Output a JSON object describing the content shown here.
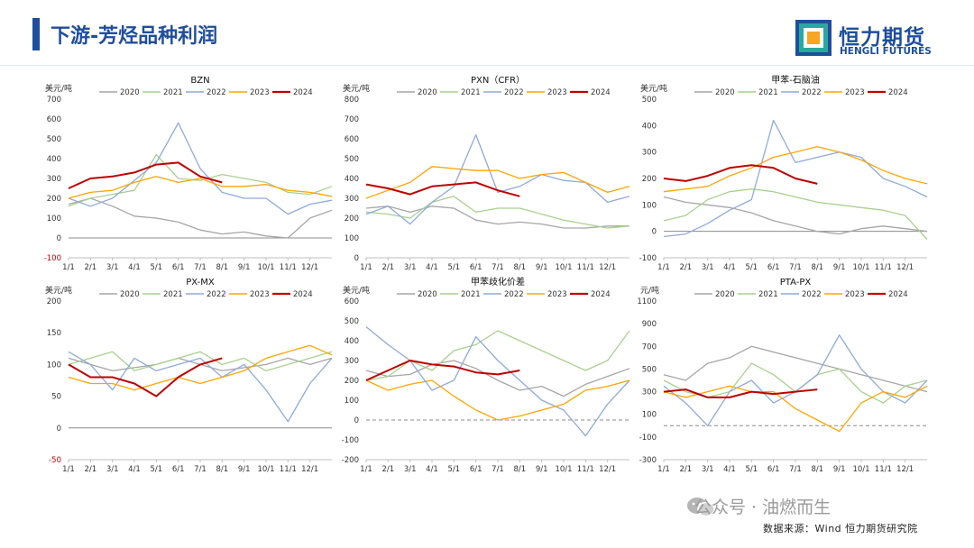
{
  "header": {
    "title": "下游-芳烃品种利润"
  },
  "logo": {
    "cn": "恒力期货",
    "en": "HENGLI FUTURES"
  },
  "footer": {
    "watermark": "公众号 · 油燃而生",
    "source": "数据来源：Wind 恒力期货研究院"
  },
  "colors": {
    "2020": "#a6a6a6",
    "2021": "#a9d18e",
    "2022": "#8faadc",
    "2023": "#ffa500",
    "2024": "#c00000",
    "brand": "#1f4e9c"
  },
  "chart_data": [
    {
      "type": "line",
      "title": "BZN",
      "unit": "美元/吨",
      "ylim": [
        -100,
        700
      ],
      "yticks": [
        "-100",
        "0",
        "100",
        "200",
        "300",
        "400",
        "500",
        "600",
        "700"
      ],
      "xticks": [
        "1/1",
        "2/1",
        "3/1",
        "4/1",
        "5/1",
        "6/1",
        "7/1",
        "8/1",
        "9/1",
        "10/1",
        "11/1",
        "12/1"
      ],
      "series": [
        {
          "name": "2020",
          "x": [
            0,
            1,
            2,
            3,
            4,
            5,
            6,
            7,
            8,
            9,
            10,
            11,
            12
          ],
          "values": [
            170,
            200,
            160,
            110,
            100,
            80,
            40,
            20,
            30,
            10,
            0,
            100,
            140
          ]
        },
        {
          "name": "2021",
          "x": [
            0,
            1,
            2,
            3,
            4,
            5,
            6,
            7,
            8,
            9,
            10,
            11,
            12
          ],
          "values": [
            160,
            200,
            220,
            240,
            420,
            300,
            290,
            320,
            300,
            280,
            230,
            220,
            260
          ]
        },
        {
          "name": "2022",
          "x": [
            0,
            1,
            2,
            3,
            4,
            5,
            6,
            7,
            8,
            9,
            10,
            11,
            12
          ],
          "values": [
            200,
            160,
            200,
            290,
            380,
            580,
            350,
            230,
            200,
            200,
            120,
            170,
            190
          ]
        },
        {
          "name": "2023",
          "x": [
            0,
            1,
            2,
            3,
            4,
            5,
            6,
            7,
            8,
            9,
            10,
            11,
            12
          ],
          "values": [
            200,
            230,
            240,
            280,
            310,
            280,
            300,
            260,
            260,
            270,
            240,
            230,
            210
          ]
        },
        {
          "name": "2024",
          "x": [
            0,
            1,
            2,
            3,
            4,
            5,
            6,
            7
          ],
          "values": [
            250,
            300,
            310,
            330,
            370,
            380,
            310,
            280
          ]
        }
      ]
    },
    {
      "type": "line",
      "title": "PXN（CFR）",
      "unit": "美元/吨",
      "ylim": [
        0,
        800
      ],
      "yticks": [
        "0",
        "100",
        "200",
        "300",
        "400",
        "500",
        "600",
        "700",
        "800"
      ],
      "xticks": [
        "1/1",
        "2/1",
        "3/1",
        "4/1",
        "5/1",
        "6/1",
        "7/1",
        "8/1",
        "9/1",
        "10/1",
        "11/1",
        "12/1"
      ],
      "series": [
        {
          "name": "2020",
          "x": [
            0,
            1,
            2,
            3,
            4,
            5,
            6,
            7,
            8,
            9,
            10,
            11,
            12
          ],
          "values": [
            250,
            260,
            230,
            260,
            250,
            190,
            170,
            180,
            170,
            150,
            150,
            160,
            160
          ]
        },
        {
          "name": "2021",
          "x": [
            0,
            1,
            2,
            3,
            4,
            5,
            6,
            7,
            8,
            9,
            10,
            11,
            12
          ],
          "values": [
            230,
            220,
            200,
            280,
            310,
            230,
            250,
            250,
            220,
            190,
            170,
            150,
            160
          ]
        },
        {
          "name": "2022",
          "x": [
            0,
            1,
            2,
            3,
            4,
            5,
            6,
            7,
            8,
            9,
            10,
            11,
            12
          ],
          "values": [
            220,
            260,
            170,
            280,
            360,
            620,
            330,
            360,
            420,
            390,
            380,
            280,
            310
          ]
        },
        {
          "name": "2023",
          "x": [
            0,
            1,
            2,
            3,
            4,
            5,
            6,
            7,
            8,
            9,
            10,
            11,
            12
          ],
          "values": [
            300,
            340,
            380,
            460,
            450,
            440,
            440,
            400,
            420,
            430,
            380,
            330,
            360
          ]
        },
        {
          "name": "2024",
          "x": [
            0,
            1,
            2,
            3,
            4,
            5,
            6,
            7
          ],
          "values": [
            370,
            350,
            320,
            360,
            370,
            380,
            340,
            310
          ]
        }
      ]
    },
    {
      "type": "line",
      "title": "甲苯-石脑油",
      "unit": "美元/吨",
      "ylim": [
        -100,
        500
      ],
      "yticks": [
        "-100",
        "0",
        "100",
        "200",
        "300",
        "400",
        "500"
      ],
      "xticks": [
        "1/1",
        "2/1",
        "3/1",
        "4/1",
        "5/1",
        "6/1",
        "7/1",
        "8/1",
        "9/1",
        "10/1",
        "11/1",
        "12/1"
      ],
      "series": [
        {
          "name": "2020",
          "x": [
            0,
            1,
            2,
            3,
            4,
            5,
            6,
            7,
            8,
            9,
            10,
            11,
            12
          ],
          "values": [
            130,
            110,
            100,
            90,
            70,
            40,
            20,
            0,
            -10,
            10,
            20,
            10,
            0
          ]
        },
        {
          "name": "2021",
          "x": [
            0,
            1,
            2,
            3,
            4,
            5,
            6,
            7,
            8,
            9,
            10,
            11,
            12
          ],
          "values": [
            40,
            60,
            120,
            150,
            160,
            150,
            130,
            110,
            100,
            90,
            80,
            60,
            -30
          ]
        },
        {
          "name": "2022",
          "x": [
            0,
            1,
            2,
            3,
            4,
            5,
            6,
            7,
            8,
            9,
            10,
            11,
            12
          ],
          "values": [
            -20,
            -10,
            30,
            80,
            120,
            420,
            260,
            280,
            300,
            280,
            200,
            170,
            130
          ]
        },
        {
          "name": "2023",
          "x": [
            0,
            1,
            2,
            3,
            4,
            5,
            6,
            7,
            8,
            9,
            10,
            11,
            12
          ],
          "values": [
            150,
            160,
            170,
            210,
            240,
            280,
            300,
            320,
            300,
            270,
            230,
            200,
            180
          ]
        },
        {
          "name": "2024",
          "x": [
            0,
            1,
            2,
            3,
            4,
            5,
            6,
            7
          ],
          "values": [
            200,
            190,
            210,
            240,
            250,
            240,
            200,
            180
          ]
        }
      ]
    },
    {
      "type": "line",
      "title": "PX-MX",
      "unit": "美元/吨",
      "ylim": [
        -50,
        200
      ],
      "yticks": [
        "-50",
        "0",
        "50",
        "100",
        "150",
        "200"
      ],
      "xticks": [
        "1/1",
        "2/1",
        "3/1",
        "4/1",
        "5/1",
        "6/1",
        "7/1",
        "8/1",
        "9/1",
        "10/1",
        "11/1",
        "12/1"
      ],
      "series": [
        {
          "name": "2020",
          "x": [
            0,
            1,
            2,
            3,
            4,
            5,
            6,
            7,
            8,
            9,
            10,
            11,
            12
          ],
          "values": [
            110,
            100,
            90,
            95,
            100,
            110,
            100,
            90,
            95,
            100,
            110,
            100,
            110
          ]
        },
        {
          "name": "2021",
          "x": [
            0,
            1,
            2,
            3,
            4,
            5,
            6,
            7,
            8,
            9,
            10,
            11,
            12
          ],
          "values": [
            100,
            110,
            120,
            90,
            100,
            110,
            120,
            100,
            110,
            90,
            100,
            110,
            120
          ]
        },
        {
          "name": "2022",
          "x": [
            0,
            1,
            2,
            3,
            4,
            5,
            6,
            7,
            8,
            9,
            10,
            11,
            12
          ],
          "values": [
            120,
            100,
            60,
            110,
            90,
            100,
            110,
            80,
            100,
            60,
            10,
            70,
            110
          ]
        },
        {
          "name": "2023",
          "x": [
            0,
            1,
            2,
            3,
            4,
            5,
            6,
            7,
            8,
            9,
            10,
            11,
            12
          ],
          "values": [
            80,
            70,
            70,
            60,
            70,
            80,
            70,
            80,
            90,
            110,
            120,
            130,
            115
          ]
        },
        {
          "name": "2024",
          "x": [
            0,
            1,
            2,
            3,
            4,
            5,
            6,
            7
          ],
          "values": [
            100,
            80,
            80,
            70,
            50,
            80,
            100,
            110
          ]
        }
      ]
    },
    {
      "type": "line",
      "title": "甲苯歧化价差",
      "unit": "美元/吨",
      "ylim": [
        -200,
        600
      ],
      "yticks": [
        "-200",
        "-100",
        "0",
        "100",
        "200",
        "300",
        "400",
        "500",
        "600"
      ],
      "xticks": [
        "1/1",
        "2/1",
        "3/1",
        "4/1",
        "5/1",
        "6/1",
        "7/1",
        "8/1",
        "9/1",
        "10/1",
        "11/1",
        "12/1"
      ],
      "series": [
        {
          "name": "2020",
          "x": [
            0,
            1,
            2,
            3,
            4,
            5,
            6,
            7,
            8,
            9,
            10,
            11,
            12
          ],
          "values": [
            250,
            220,
            230,
            280,
            300,
            260,
            200,
            150,
            170,
            120,
            180,
            220,
            260
          ]
        },
        {
          "name": "2021",
          "x": [
            0,
            1,
            2,
            3,
            4,
            5,
            6,
            7,
            8,
            9,
            10,
            11,
            12
          ],
          "values": [
            200,
            220,
            300,
            250,
            350,
            380,
            450,
            400,
            350,
            300,
            250,
            300,
            450
          ]
        },
        {
          "name": "2022",
          "x": [
            0,
            1,
            2,
            3,
            4,
            5,
            6,
            7,
            8,
            9,
            10,
            11,
            12
          ],
          "values": [
            470,
            380,
            300,
            150,
            200,
            420,
            300,
            200,
            100,
            50,
            -80,
            80,
            200
          ]
        },
        {
          "name": "2023",
          "x": [
            0,
            1,
            2,
            3,
            4,
            5,
            6,
            7,
            8,
            9,
            10,
            11,
            12
          ],
          "values": [
            200,
            150,
            180,
            200,
            120,
            50,
            0,
            20,
            50,
            80,
            150,
            170,
            200
          ]
        },
        {
          "name": "2024",
          "x": [
            0,
            1,
            2,
            3,
            4,
            5,
            6,
            7
          ],
          "values": [
            200,
            250,
            300,
            280,
            270,
            240,
            230,
            250
          ]
        }
      ]
    },
    {
      "type": "line",
      "title": "PTA-PX",
      "unit": "元/吨",
      "ylim": [
        -300,
        1100
      ],
      "yticks": [
        "-300",
        "-100",
        "100",
        "300",
        "500",
        "700",
        "900",
        "1100"
      ],
      "xticks": [
        "1/1",
        "2/1",
        "3/1",
        "4/1",
        "5/1",
        "6/1",
        "7/1",
        "8/1",
        "9/1",
        "10/1",
        "11/1",
        "12/1"
      ],
      "series": [
        {
          "name": "2020",
          "x": [
            0,
            1,
            2,
            3,
            4,
            5,
            6,
            7,
            8,
            9,
            10,
            11,
            12
          ],
          "values": [
            450,
            400,
            550,
            600,
            700,
            650,
            600,
            550,
            500,
            450,
            400,
            350,
            300
          ]
        },
        {
          "name": "2021",
          "x": [
            0,
            1,
            2,
            3,
            4,
            5,
            6,
            7,
            8,
            9,
            10,
            11,
            12
          ],
          "values": [
            400,
            300,
            250,
            300,
            550,
            450,
            300,
            450,
            500,
            300,
            200,
            350,
            400
          ]
        },
        {
          "name": "2022",
          "x": [
            0,
            1,
            2,
            3,
            4,
            5,
            6,
            7,
            8,
            9,
            10,
            11,
            12
          ],
          "values": [
            350,
            200,
            0,
            300,
            400,
            200,
            300,
            450,
            800,
            500,
            300,
            200,
            400
          ]
        },
        {
          "name": "2023",
          "x": [
            0,
            1,
            2,
            3,
            4,
            5,
            6,
            7,
            8,
            9,
            10,
            11,
            12
          ],
          "values": [
            300,
            250,
            300,
            350,
            300,
            300,
            150,
            50,
            -50,
            200,
            300,
            250,
            350
          ]
        },
        {
          "name": "2024",
          "x": [
            0,
            1,
            2,
            3,
            4,
            5,
            6,
            7
          ],
          "values": [
            300,
            320,
            250,
            250,
            300,
            280,
            300,
            320
          ]
        }
      ]
    }
  ]
}
